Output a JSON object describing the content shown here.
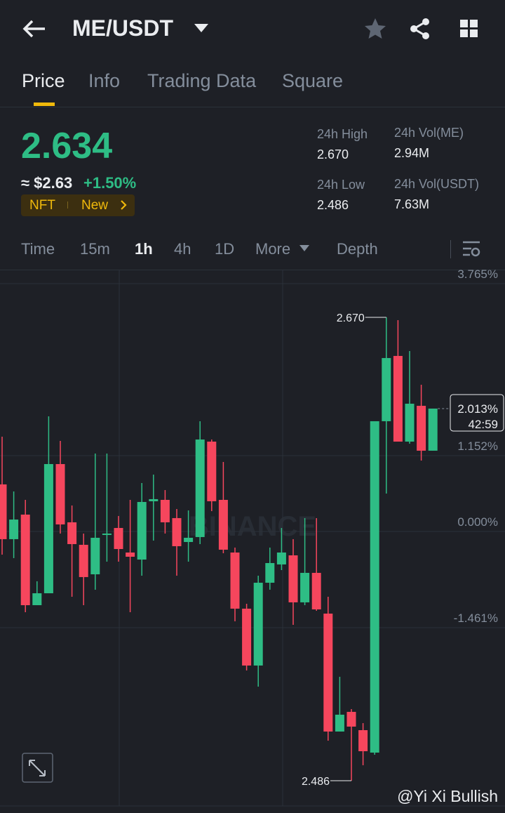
{
  "header": {
    "pair": "ME/USDT"
  },
  "tabs": [
    "Price",
    "Info",
    "Trading Data",
    "Square"
  ],
  "ticker": {
    "price": "2.634",
    "usd": "≈ $2.63",
    "change": "+1.50%",
    "tags": [
      "NFT",
      "New"
    ],
    "stats": [
      {
        "label": "24h High",
        "value": "2.670"
      },
      {
        "label": "24h Vol(ME)",
        "value": "2.94M"
      },
      {
        "label": "24h Low",
        "value": "2.486"
      },
      {
        "label": "24h Vol(USDT)",
        "value": "7.63M"
      }
    ]
  },
  "intervals": [
    "Time",
    "15m",
    "1h",
    "4h",
    "1D",
    "More",
    "Depth"
  ],
  "chart_data": {
    "type": "candlestick",
    "open": [
      0.715,
      -0.117,
      0.256,
      -1.12,
      -0.939,
      1.024,
      0.139,
      -0.203,
      -0.651,
      -0.053,
      0.053,
      -0.32,
      -0.427,
      0.459,
      0.48,
      0.203,
      -0.16,
      -0.085,
      1.365,
      0.48,
      -0.32,
      -1.173,
      -2.037,
      -0.779,
      -0.501,
      -0.363,
      -1.077,
      -0.629,
      -1.248,
      -3.04,
      -2.741,
      -3.019,
      -3.36,
      1.675,
      2.667,
      1.365,
      1.909,
      1.227
    ],
    "high": [
      1.44,
      0.608,
      0.48,
      -0.757,
      1.749,
      1.376,
      0.395,
      -0.032,
      1.184,
      1.184,
      0.235,
      0.48,
      0.736,
      0.864,
      0.629,
      0.341,
      0.32,
      1.675,
      1.397,
      1.056,
      -0.245,
      -1.099,
      -0.672,
      -0.245,
      0.053,
      -0.117,
      0.203,
      0.203,
      -0.992,
      -2.208,
      -2.699,
      -2.912,
      1.675,
      3.253,
      3.211,
      2.741,
      2.229,
      1.867
    ],
    "low": [
      -0.352,
      -0.405,
      -1.227,
      -1.12,
      -0.939,
      -0.032,
      -0.992,
      -1.12,
      -0.885,
      -0.459,
      -0.459,
      -1.227,
      -0.672,
      -0.139,
      -0.032,
      -0.672,
      -0.459,
      -0.192,
      0.309,
      -0.331,
      -1.365,
      -2.112,
      -2.357,
      -0.885,
      -0.587,
      -1.419,
      -1.12,
      -1.205,
      -3.179,
      -3.04,
      -3.787,
      -3.552,
      -3.392,
      0.576,
      1.365,
      1.333,
      1.077,
      1.227
    ],
    "close": [
      -0.117,
      0.181,
      -1.12,
      -0.939,
      1.024,
      0.107,
      -0.192,
      -0.693,
      -0.096,
      -0.032,
      -0.267,
      -0.384,
      0.448,
      0.491,
      0.139,
      -0.224,
      -0.096,
      1.397,
      0.459,
      -0.277,
      -1.173,
      -2.037,
      -0.779,
      -0.48,
      -0.32,
      -1.077,
      -0.629,
      -1.184,
      -3.04,
      -2.784,
      -2.965,
      -3.339,
      1.675,
      2.635,
      1.365,
      1.941,
      1.227,
      1.867
    ],
    "ylim": [
      -4.171,
      3.968
    ],
    "yticks": [
      {
        "value": 3.765,
        "label": "3.765%"
      },
      {
        "value": 1.152,
        "label": "1.152%"
      },
      {
        "value": 0,
        "label": "0.000%"
      },
      {
        "value": -1.461,
        "label": "-1.461%"
      }
    ],
    "up_color": "#2ebd85",
    "down_color": "#f6465d",
    "high_label": "2.670",
    "low_label": "2.486",
    "last_label": "2.013%",
    "countdown": "42:59",
    "watermark": "BINANCE"
  },
  "footer": {
    "watermark": "@Yi Xi Bullish"
  }
}
